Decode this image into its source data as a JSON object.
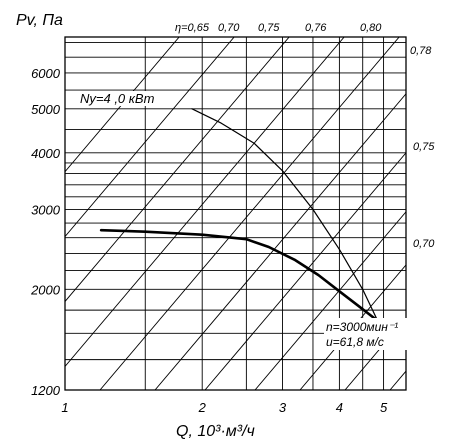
{
  "chart_data": {
    "type": "line",
    "title": "",
    "ylabel": "Pv, Па",
    "xlabel": "Q, 10³·м³/ч",
    "x_scale": "log",
    "y_scale": "log",
    "xlim": [
      1,
      5.6
    ],
    "ylim": [
      1200,
      7200
    ],
    "x_ticks": [
      1,
      2,
      3,
      4,
      5
    ],
    "y_ticks": [
      1200,
      2000,
      3000,
      4000,
      5000,
      6000
    ],
    "grid": true,
    "series": [
      {
        "name": "pressure",
        "x": [
          1.2,
          1.5,
          2.0,
          2.5,
          2.8,
          3.2,
          3.6,
          4.0,
          4.4,
          4.8,
          5.0
        ],
        "y": [
          2700,
          2680,
          2640,
          2580,
          2480,
          2320,
          2150,
          1980,
          1840,
          1720,
          1620
        ]
      },
      {
        "name": "Ny=4,0 кВт",
        "x": [
          1.9,
          2.2,
          2.6,
          3.0,
          3.5,
          4.0,
          4.5,
          5.0
        ],
        "y": [
          5000,
          4650,
          4200,
          3650,
          3000,
          2450,
          2000,
          1600
        ]
      }
    ],
    "efficiency_lines": [
      "η=0,65",
      "0,70",
      "0,75",
      "0,76",
      "0,80",
      "0,78",
      "0,75",
      "0,70"
    ],
    "annotations": [
      "Ny=4 ,0 кВт",
      "n=3000мин⁻¹",
      "u=61,8 м/с"
    ]
  }
}
